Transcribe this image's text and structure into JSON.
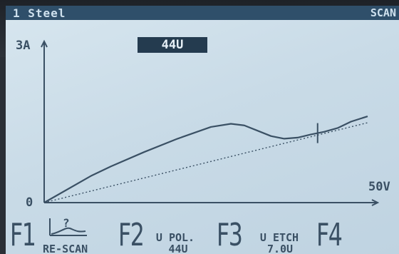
{
  "header": {
    "title": "1 Steel",
    "mode": "SCAN"
  },
  "display": {
    "voltage": "44U"
  },
  "chart_data": {
    "type": "line",
    "y_axis_label": "3A",
    "x_axis_label": "50V",
    "origin_label": "0",
    "series": [
      {
        "x": [
          0,
          7,
          10,
          15,
          20,
          25,
          28,
          30,
          32,
          34,
          36,
          38,
          40,
          42,
          44,
          46,
          48.5
        ],
        "y": [
          0,
          0.5,
          0.68,
          0.95,
          1.2,
          1.42,
          1.48,
          1.45,
          1.35,
          1.25,
          1.2,
          1.22,
          1.28,
          1.33,
          1.4,
          1.52,
          1.62
        ]
      },
      {
        "x": [
          0,
          48.5
        ],
        "y": [
          0,
          1.5
        ]
      }
    ],
    "marker_x": 41,
    "xlim": [
      0,
      50
    ],
    "ylim": [
      0,
      3
    ]
  },
  "function_keys": {
    "f1": {
      "label": "F1",
      "text": "RE-SCAN",
      "icon": "rescan-icon"
    },
    "f2": {
      "label": "F2",
      "text_line1": "U POL.",
      "text_line2": "44U"
    },
    "f3": {
      "label": "F3",
      "text_line1": "U ETCH",
      "text_line2": "7.0U"
    },
    "f4": {
      "label": "F4"
    }
  },
  "colors": {
    "lcd_background": "#c9dbe7",
    "ink": "#3a5064",
    "header_bar": "#2f4f6a"
  }
}
